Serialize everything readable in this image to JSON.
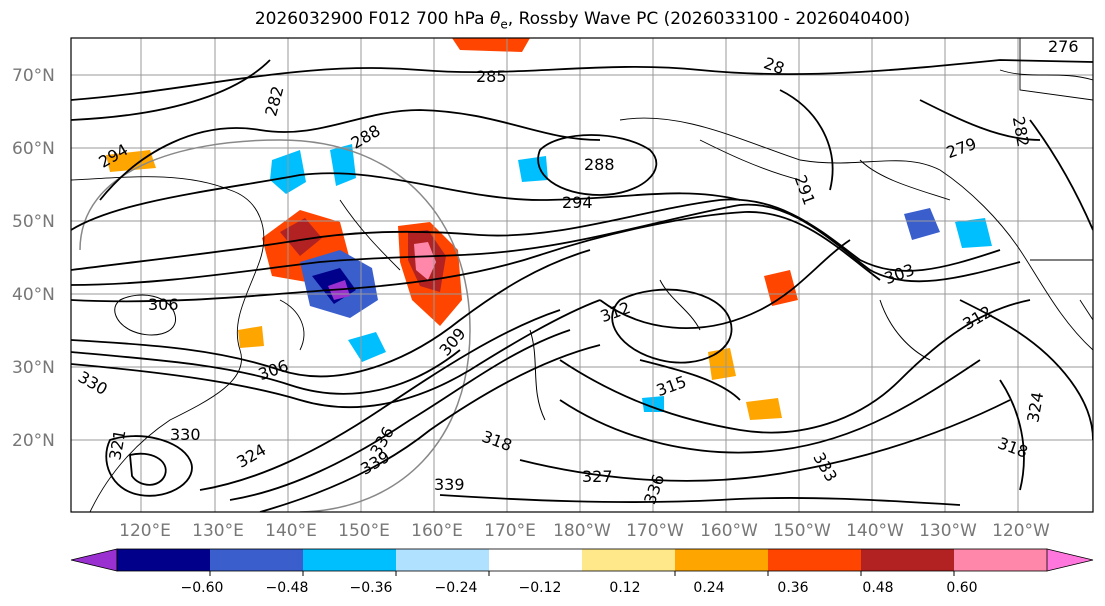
{
  "title": {
    "prefix": "2026032900 F012 700 hPa ",
    "symbol": "θ",
    "subscript": "e",
    "suffix": ", Rossby Wave PC (2026033100 - 2026040400)"
  },
  "lat_ticks": [
    "70°N",
    "60°N",
    "50°N",
    "40°N",
    "30°N",
    "20°N"
  ],
  "lon_ticks": [
    "120°E",
    "130°E",
    "140°E",
    "150°E",
    "160°E",
    "170°E",
    "180°W",
    "170°W",
    "160°W",
    "150°W",
    "140°W",
    "130°W",
    "120°W"
  ],
  "contour_labels": [
    "285",
    "282",
    "288",
    "294",
    "288",
    "294",
    "28",
    "291",
    "279",
    "282",
    "276",
    "306",
    "306",
    "312",
    "315",
    "330",
    "330",
    "324",
    "318",
    "327",
    "339",
    "336",
    "339",
    "333",
    "309",
    "312",
    "324",
    "318",
    "321",
    "336",
    "303"
  ],
  "colorbar": {
    "ticks": [
      "−0.60",
      "−0.48",
      "−0.36",
      "−0.24",
      "−0.12",
      "0.12",
      "0.24",
      "0.36",
      "0.48",
      "0.60"
    ],
    "colors": [
      "#9b30d0",
      "#00008b",
      "#3a5fcd",
      "#00bfff",
      "#b0e2ff",
      "#ffffff",
      "#ffe88a",
      "#ffa500",
      "#ff4500",
      "#b22222",
      "#ff88aa",
      "#ff77dd"
    ]
  }
}
